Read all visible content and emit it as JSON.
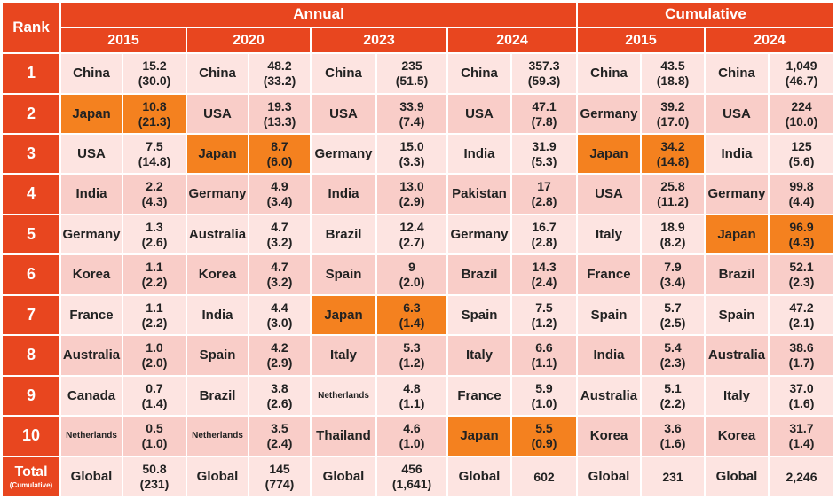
{
  "colors": {
    "header": "#e8461f",
    "row_light": "#fde4e1",
    "row_dark": "#f9cdc8",
    "highlight": "#f4811f"
  },
  "headers": {
    "rank": "Rank",
    "annual": "Annual",
    "cumulative": "Cumulative",
    "years": [
      "2015",
      "2020",
      "2023",
      "2024",
      "2015",
      "2024"
    ]
  },
  "chart_data": {
    "type": "table",
    "rows": [
      {
        "rank": "1",
        "cells": [
          {
            "country": "China",
            "value": "15.2\n(30.0)"
          },
          {
            "country": "China",
            "value": "48.2\n(33.2)"
          },
          {
            "country": "China",
            "value": "235\n(51.5)"
          },
          {
            "country": "China",
            "value": "357.3\n(59.3)"
          },
          {
            "country": "China",
            "value": "43.5\n(18.8)"
          },
          {
            "country": "China",
            "value": "1,049\n(46.7)"
          }
        ]
      },
      {
        "rank": "2",
        "cells": [
          {
            "country": "Japan",
            "value": "10.8\n(21.3)",
            "highlight": true
          },
          {
            "country": "USA",
            "value": "19.3\n(13.3)"
          },
          {
            "country": "USA",
            "value": "33.9\n(7.4)"
          },
          {
            "country": "USA",
            "value": "47.1\n(7.8)"
          },
          {
            "country": "Germany",
            "value": "39.2\n(17.0)"
          },
          {
            "country": "USA",
            "value": "224\n(10.0)"
          }
        ]
      },
      {
        "rank": "3",
        "cells": [
          {
            "country": "USA",
            "value": "7.5\n(14.8)"
          },
          {
            "country": "Japan",
            "value": "8.7\n(6.0)",
            "highlight": true
          },
          {
            "country": "Germany",
            "value": "15.0\n(3.3)"
          },
          {
            "country": "India",
            "value": "31.9\n(5.3)"
          },
          {
            "country": "Japan",
            "value": "34.2\n(14.8)",
            "highlight": true
          },
          {
            "country": "India",
            "value": "125\n(5.6)"
          }
        ]
      },
      {
        "rank": "4",
        "cells": [
          {
            "country": "India",
            "value": "2.2\n(4.3)"
          },
          {
            "country": "Germany",
            "value": "4.9\n(3.4)"
          },
          {
            "country": "India",
            "value": "13.0\n(2.9)"
          },
          {
            "country": "Pakistan",
            "value": "17\n(2.8)"
          },
          {
            "country": "USA",
            "value": "25.8\n(11.2)"
          },
          {
            "country": "Germany",
            "value": "99.8\n(4.4)"
          }
        ]
      },
      {
        "rank": "5",
        "cells": [
          {
            "country": "Germany",
            "value": "1.3\n(2.6)"
          },
          {
            "country": "Australia",
            "value": "4.7\n(3.2)"
          },
          {
            "country": "Brazil",
            "value": "12.4\n(2.7)"
          },
          {
            "country": "Germany",
            "value": "16.7\n(2.8)"
          },
          {
            "country": "Italy",
            "value": "18.9\n(8.2)"
          },
          {
            "country": "Japan",
            "value": "96.9\n(4.3)",
            "highlight": true
          }
        ]
      },
      {
        "rank": "6",
        "cells": [
          {
            "country": "Korea",
            "value": "1.1\n(2.2)"
          },
          {
            "country": "Korea",
            "value": "4.7\n(3.2)"
          },
          {
            "country": "Spain",
            "value": "9\n(2.0)"
          },
          {
            "country": "Brazil",
            "value": "14.3\n(2.4)"
          },
          {
            "country": "France",
            "value": "7.9\n(3.4)"
          },
          {
            "country": "Brazil",
            "value": "52.1\n(2.3)"
          }
        ]
      },
      {
        "rank": "7",
        "cells": [
          {
            "country": "France",
            "value": "1.1\n(2.2)"
          },
          {
            "country": "India",
            "value": "4.4\n(3.0)"
          },
          {
            "country": "Japan",
            "value": "6.3\n(1.4)",
            "highlight": true
          },
          {
            "country": "Spain",
            "value": "7.5\n(1.2)"
          },
          {
            "country": "Spain",
            "value": "5.7\n(2.5)"
          },
          {
            "country": "Spain",
            "value": "47.2\n(2.1)"
          }
        ]
      },
      {
        "rank": "8",
        "cells": [
          {
            "country": "Australia",
            "value": "1.0\n(2.0)"
          },
          {
            "country": "Spain",
            "value": "4.2\n(2.9)"
          },
          {
            "country": "Italy",
            "value": "5.3\n(1.2)"
          },
          {
            "country": "Italy",
            "value": "6.6\n(1.1)"
          },
          {
            "country": "India",
            "value": "5.4\n(2.3)"
          },
          {
            "country": "Australia",
            "value": "38.6\n(1.7)"
          }
        ]
      },
      {
        "rank": "9",
        "cells": [
          {
            "country": "Canada",
            "value": "0.7\n(1.4)"
          },
          {
            "country": "Brazil",
            "value": "3.8\n(2.6)"
          },
          {
            "country": "Netherlands",
            "value": "4.8\n(1.1)"
          },
          {
            "country": "France",
            "value": "5.9\n(1.0)"
          },
          {
            "country": "Australia",
            "value": "5.1\n(2.2)"
          },
          {
            "country": "Italy",
            "value": "37.0\n(1.6)"
          }
        ]
      },
      {
        "rank": "10",
        "cells": [
          {
            "country": "Netherlands",
            "value": "0.5\n(1.0)"
          },
          {
            "country": "Netherlands",
            "value": "3.5\n(2.4)"
          },
          {
            "country": "Thailand",
            "value": "4.6\n(1.0)"
          },
          {
            "country": "Japan",
            "value": "5.5\n(0.9)",
            "highlight": true
          },
          {
            "country": "Korea",
            "value": "3.6\n(1.6)"
          },
          {
            "country": "Korea",
            "value": "31.7\n(1.4)"
          }
        ]
      }
    ],
    "total": {
      "label": "Total",
      "sublabel": "(Cumulative)",
      "cells": [
        {
          "country": "Global",
          "value": "50.8\n(231)"
        },
        {
          "country": "Global",
          "value": "145\n(774)"
        },
        {
          "country": "Global",
          "value": "456\n(1,641)"
        },
        {
          "country": "Global",
          "value": "602"
        },
        {
          "country": "Global",
          "value": "231"
        },
        {
          "country": "Global",
          "value": "2,246"
        }
      ]
    }
  }
}
